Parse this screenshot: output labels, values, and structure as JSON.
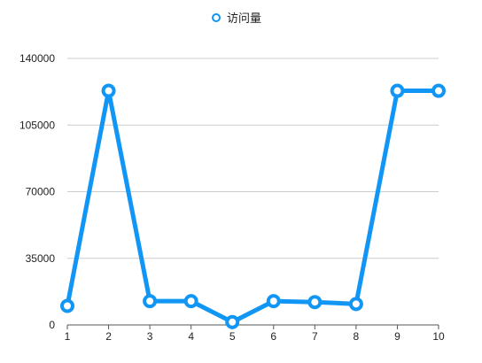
{
  "chart_data": {
    "type": "line",
    "x": [
      "1",
      "2",
      "3",
      "4",
      "5",
      "6",
      "7",
      "8",
      "9",
      "10"
    ],
    "series": [
      {
        "name": "访问量",
        "values": [
          10000,
          123000,
          12500,
          12500,
          1500,
          12500,
          12000,
          11000,
          123000,
          123000
        ]
      }
    ],
    "ylim": [
      0,
      140000
    ],
    "yticks": [
      "0",
      "35000",
      "70000",
      "105000",
      "140000"
    ],
    "grid": true,
    "legend": "top-center",
    "colors": {
      "series": "#1296f5",
      "grid": "#cccccc",
      "axis": "#555555"
    }
  }
}
